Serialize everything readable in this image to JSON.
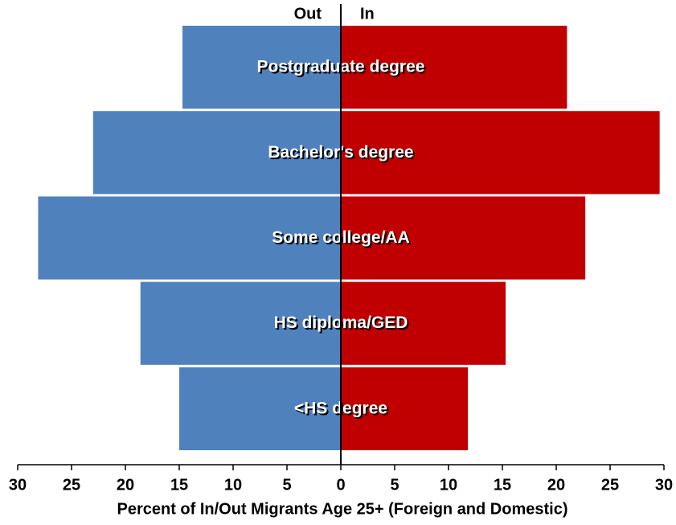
{
  "chart_data": {
    "type": "bar",
    "orientation": "horizontal",
    "x_label": "Percent of In/Out Migrants Age 25+ (Foreign and Domestic)",
    "categories": [
      "Postgraduate degree",
      "Bachelor's degree",
      "Some college/AA",
      "HS diploma/GED",
      "<HS degree"
    ],
    "series": [
      {
        "name": "Out",
        "color": "#4f81bd",
        "side": "left",
        "values": [
          14.7,
          23.0,
          28.1,
          18.6,
          15.0
        ]
      },
      {
        "name": "In",
        "color": "#c00000",
        "side": "right",
        "values": [
          21.0,
          29.6,
          22.7,
          15.3,
          11.8
        ]
      }
    ],
    "xlim": [
      -30,
      30
    ],
    "xticks": [
      {
        "value": -30,
        "label": "30"
      },
      {
        "value": -25,
        "label": "25"
      },
      {
        "value": -20,
        "label": "20"
      },
      {
        "value": -15,
        "label": "15"
      },
      {
        "value": -10,
        "label": "10"
      },
      {
        "value": -5,
        "label": "5"
      },
      0,
      5,
      10,
      15,
      20,
      25,
      30
    ]
  }
}
